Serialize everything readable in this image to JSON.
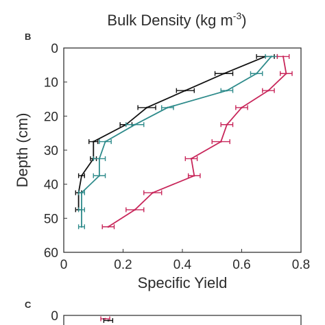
{
  "figure": {
    "top_title_base": "Bulk Density (kg m",
    "top_title_sup": "-3",
    "top_title_end": ")",
    "panel_b": "B",
    "panel_c": "C"
  },
  "chart_data": [
    {
      "panel": "B",
      "type": "line",
      "xlabel": "Specific Yield",
      "ylabel": "Depth (cm)",
      "xlim": [
        0,
        0.8
      ],
      "ylim": [
        60,
        0
      ],
      "y_inverted": true,
      "xticks": [
        0,
        0.2,
        0.4,
        0.6,
        0.8
      ],
      "xtick_labels": [
        "0",
        "0.2",
        "0.4",
        "0.6",
        "0.8"
      ],
      "yticks": [
        0,
        10,
        20,
        30,
        40,
        50,
        60
      ],
      "ytick_labels": [
        "0",
        "10",
        "20",
        "30",
        "40",
        "50",
        "60"
      ],
      "grid": false,
      "series": [
        {
          "color": "#111111",
          "points": [
            {
              "x": 0.68,
              "y": 2.5,
              "err": 0.03
            },
            {
              "x": 0.54,
              "y": 7.5,
              "err": 0.03
            },
            {
              "x": 0.41,
              "y": 12.5,
              "err": 0.03
            },
            {
              "x": 0.28,
              "y": 17.5,
              "err": 0.03
            },
            {
              "x": 0.21,
              "y": 22.5,
              "err": 0.02
            },
            {
              "x": 0.1,
              "y": 27.5,
              "err": 0.015
            },
            {
              "x": 0.1,
              "y": 32.5,
              "err": 0.01
            },
            {
              "x": 0.06,
              "y": 37.5,
              "err": 0.01
            },
            {
              "x": 0.05,
              "y": 42.5,
              "err": 0.01
            },
            {
              "x": 0.05,
              "y": 47.5,
              "err": 0.01
            }
          ]
        },
        {
          "color": "#2e8b8b",
          "points": [
            {
              "x": 0.7,
              "y": 2.5,
              "err": 0.02
            },
            {
              "x": 0.65,
              "y": 7.5,
              "err": 0.02
            },
            {
              "x": 0.55,
              "y": 12.5,
              "err": 0.02
            },
            {
              "x": 0.35,
              "y": 17.5,
              "err": 0.02
            },
            {
              "x": 0.24,
              "y": 22.5,
              "err": 0.03
            },
            {
              "x": 0.14,
              "y": 27.5,
              "err": 0.02
            },
            {
              "x": 0.12,
              "y": 32.5,
              "err": 0.02
            },
            {
              "x": 0.12,
              "y": 37.5,
              "err": 0.02
            },
            {
              "x": 0.06,
              "y": 42.5,
              "err": 0.01
            },
            {
              "x": 0.06,
              "y": 47.5,
              "err": 0.01
            },
            {
              "x": 0.06,
              "y": 52.5,
              "err": 0.01
            }
          ]
        },
        {
          "color": "#c8265a",
          "points": [
            {
              "x": 0.74,
              "y": 2.5,
              "err": 0.02
            },
            {
              "x": 0.75,
              "y": 7.5,
              "err": 0.02
            },
            {
              "x": 0.69,
              "y": 12.5,
              "err": 0.02
            },
            {
              "x": 0.6,
              "y": 17.5,
              "err": 0.02
            },
            {
              "x": 0.55,
              "y": 22.5,
              "err": 0.02
            },
            {
              "x": 0.53,
              "y": 27.5,
              "err": 0.03
            },
            {
              "x": 0.43,
              "y": 32.5,
              "err": 0.02
            },
            {
              "x": 0.44,
              "y": 37.5,
              "err": 0.02
            },
            {
              "x": 0.3,
              "y": 42.5,
              "err": 0.03
            },
            {
              "x": 0.24,
              "y": 47.5,
              "err": 0.03
            },
            {
              "x": 0.15,
              "y": 52.5,
              "err": 0.02
            }
          ]
        }
      ]
    },
    {
      "panel": "C",
      "type": "line",
      "yticks": [
        0
      ],
      "ytick_labels": [
        "0"
      ],
      "ylim": [
        60,
        0
      ],
      "y_inverted": true,
      "series": [
        {
          "color": "#c8265a",
          "points": [
            {
              "x": 0.14,
              "y": 1.0,
              "err": 0.015
            }
          ]
        },
        {
          "color": "#111111",
          "points": [
            {
              "x": 0.15,
              "y": 1.5,
              "err": 0.015
            }
          ]
        }
      ]
    }
  ]
}
